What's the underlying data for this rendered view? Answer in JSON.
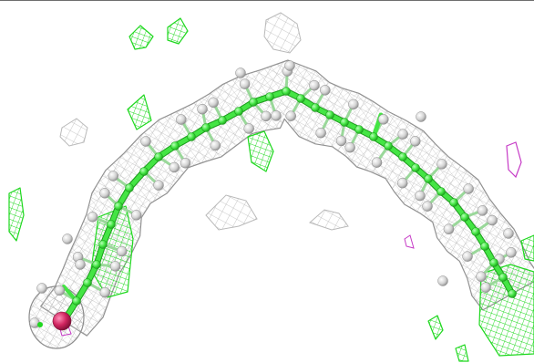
{
  "scene": {
    "kind": "molecular-viewer",
    "background_color": "#ffffff",
    "border_color": "#6e6e6e",
    "mesh_color": "#b9b9b9",
    "mesh_dense_color": "#8c8c8c",
    "ligand_bond_color": "#44e544",
    "ligand_atom_color": "#39d839",
    "hydrogen_color": "#d3d3d3",
    "oxygen_color": "#d0245f",
    "green_density_color": "#1fd81f",
    "magenta_density_color": "#c63ac6",
    "icons": [
      "electron-density-mesh",
      "ligand-stick-model",
      "difference-density-blob"
    ]
  }
}
